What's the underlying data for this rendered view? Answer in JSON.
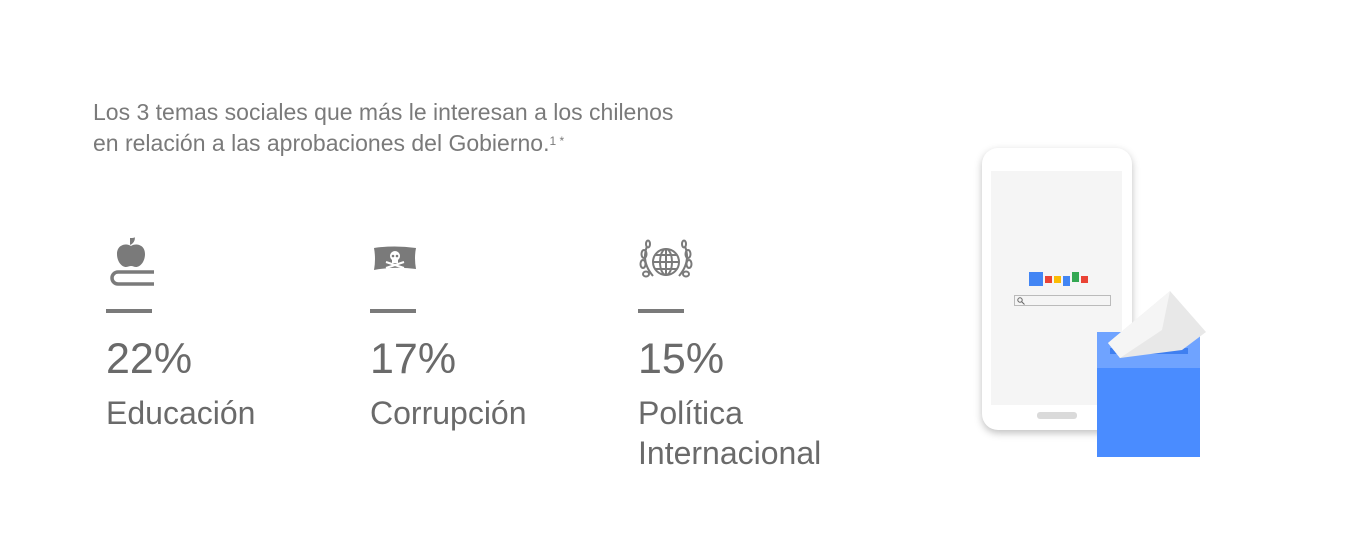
{
  "title": {
    "line1": "Los 3 temas sociales que más le interesan a los chilenos",
    "line2": "en relación a las aprobaciones del Gobierno.",
    "footnote": "1 *"
  },
  "stats": [
    {
      "icon": "apple-on-book-icon",
      "percent": "22%",
      "label": "Educación"
    },
    {
      "icon": "pirate-flag-icon",
      "percent": "17%",
      "label": "Corrupción"
    },
    {
      "icon": "globe-laurel-icon",
      "percent": "15%",
      "label_line1": "Política",
      "label_line2": "Internacional"
    }
  ],
  "colors": {
    "text": "#6a6a6a",
    "ballot_box": "#4a8cff",
    "ballot_lid": "#6fa3ff",
    "logo": [
      "#4285f4",
      "#ea4335",
      "#fbbc05",
      "#4285f4",
      "#34a853",
      "#ea4335"
    ]
  }
}
